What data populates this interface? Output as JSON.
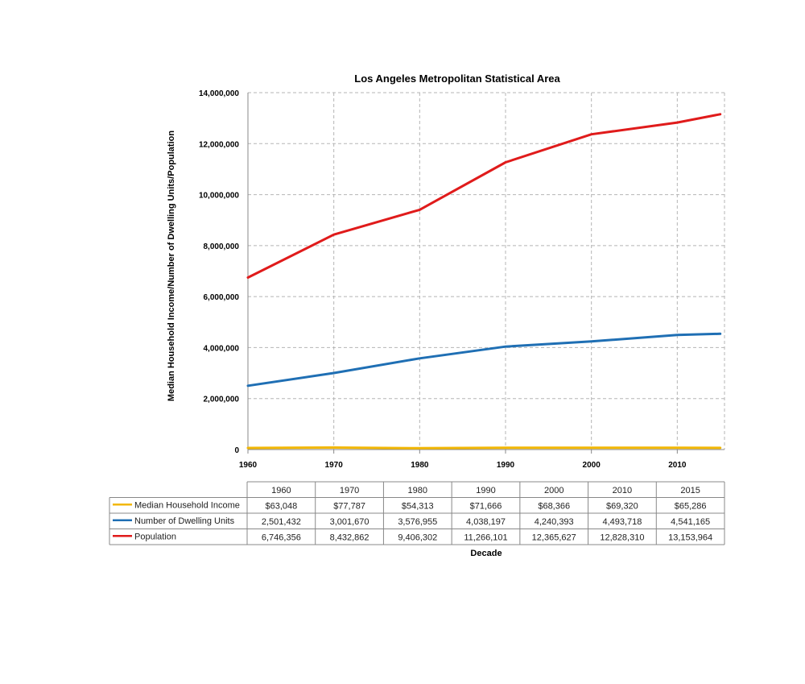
{
  "chart_data": {
    "type": "line",
    "title": "Los Angeles Metropolitan Statistical Area",
    "xlabel": "Decade",
    "ylabel": "Median Household Income/Number of Dwelling Units/Population",
    "x": [
      1960,
      1970,
      1980,
      1990,
      2000,
      2010,
      2015
    ],
    "x_tick_labels": [
      "1960",
      "1970",
      "1980",
      "1990",
      "2000",
      "2010"
    ],
    "y_tick_labels": [
      "0",
      "2,000,000",
      "4,000,000",
      "6,000,000",
      "8,000,000",
      "10,000,000",
      "12,000,000",
      "14,000,000"
    ],
    "ylim": [
      0,
      14000000
    ],
    "grid": true,
    "series": [
      {
        "name": "Median Household Income",
        "color": "#f2b705",
        "values": [
          63048,
          77787,
          54313,
          71666,
          68366,
          69320,
          65286
        ],
        "table_values": [
          "$63,048",
          "$77,787",
          "$54,313",
          "$71,666",
          "$68,366",
          "$69,320",
          "$65,286"
        ]
      },
      {
        "name": "Number of Dwelling Units",
        "color": "#1f6fb4",
        "values": [
          2501432,
          3001670,
          3576955,
          4038197,
          4240393,
          4493718,
          4541165
        ],
        "table_values": [
          "2,501,432",
          "3,001,670",
          "3,576,955",
          "4,038,197",
          "4,240,393",
          "4,493,718",
          "4,541,165"
        ]
      },
      {
        "name": "Population",
        "color": "#e01b1b",
        "values": [
          6746356,
          8432862,
          9406302,
          11266101,
          12365627,
          12828310,
          13153964
        ],
        "table_values": [
          "6,746,356",
          "8,432,862",
          "9,406,302",
          "11,266,101",
          "12,365,627",
          "12,828,310",
          "13,153,964"
        ]
      }
    ],
    "table_headers": [
      "1960",
      "1970",
      "1980",
      "1990",
      "2000",
      "2010",
      "2015"
    ]
  }
}
